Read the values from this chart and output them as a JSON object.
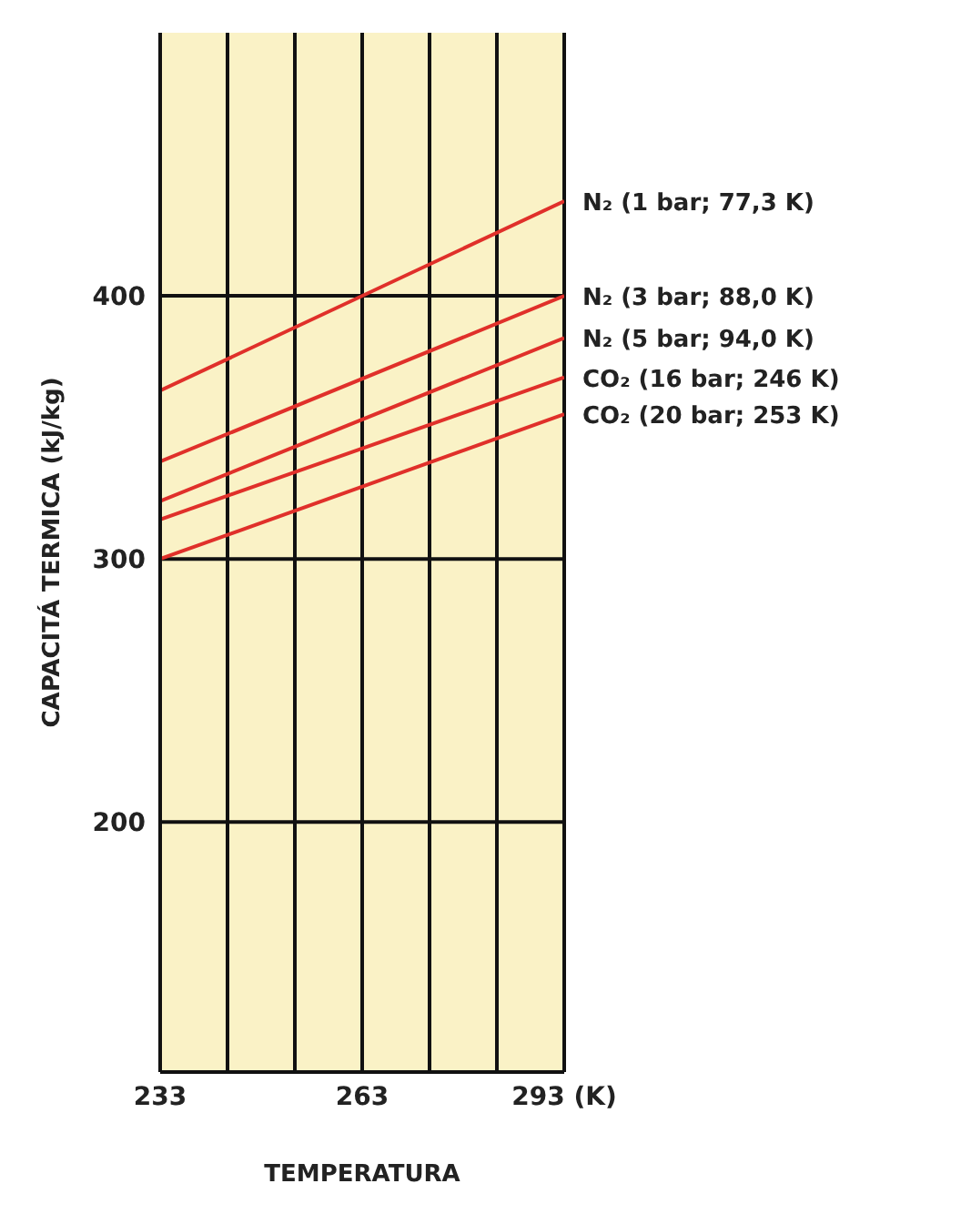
{
  "chart_data": {
    "type": "line",
    "xlabel": "TEMPERATURA",
    "ylabel": "CAPACITÁ TERMICA (kJ/kg)",
    "x": [
      233,
      293
    ],
    "series": [
      {
        "name": "N₂ (1 bar; 77,3 K)",
        "color": "#e0302a",
        "values": [
          364,
          436
        ]
      },
      {
        "name": "N₂ (3 bar; 88,0 K)",
        "color": "#e0302a",
        "values": [
          337,
          400
        ]
      },
      {
        "name": "N₂ (5 bar; 94,0 K)",
        "color": "#e0302a",
        "values": [
          322,
          384
        ]
      },
      {
        "name": "CO₂ (16 bar; 246 K)",
        "color": "#e0302a",
        "values": [
          315,
          369
        ]
      },
      {
        "name": "CO₂ (20 bar; 253 K)",
        "color": "#e0302a",
        "values": [
          300,
          355
        ]
      }
    ],
    "xlim": [
      233,
      293
    ],
    "xticks": [
      233,
      {
        "value": 243,
        "label": null
      },
      {
        "value": 253,
        "label": null
      },
      263,
      {
        "value": 273,
        "label": null
      },
      {
        "value": 283,
        "label": null
      },
      {
        "value": 293,
        "label": "293 (K)"
      }
    ],
    "ylim": [
      105,
      500
    ],
    "yticks": [
      200,
      300,
      400
    ],
    "grid": true,
    "marker": "none",
    "line_style": "solid"
  }
}
